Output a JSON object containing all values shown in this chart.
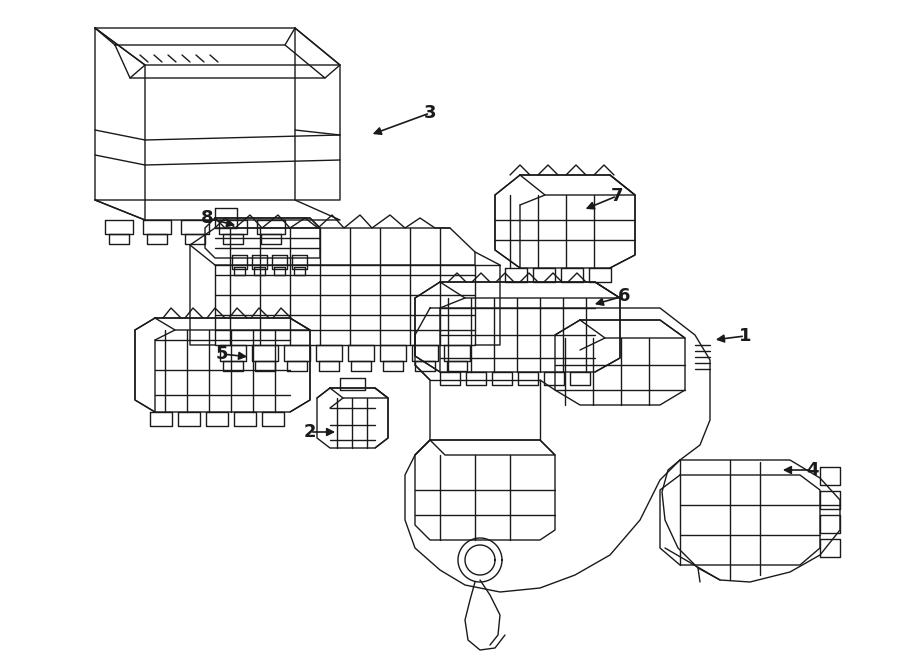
{
  "background_color": "#ffffff",
  "line_color": "#1a1a1a",
  "line_width": 1.0,
  "fig_width": 9.0,
  "fig_height": 6.62,
  "dpi": 100,
  "font_size": 13,
  "arrow_data": [
    [
      430,
      113,
      370,
      135,
      "3"
    ],
    [
      207,
      218,
      238,
      226,
      "8"
    ],
    [
      617,
      196,
      583,
      210,
      "7"
    ],
    [
      222,
      354,
      250,
      357,
      "5"
    ],
    [
      624,
      296,
      592,
      305,
      "6"
    ],
    [
      745,
      336,
      713,
      340,
      "1"
    ],
    [
      310,
      432,
      338,
      432,
      "2"
    ],
    [
      812,
      470,
      780,
      470,
      "4"
    ]
  ]
}
